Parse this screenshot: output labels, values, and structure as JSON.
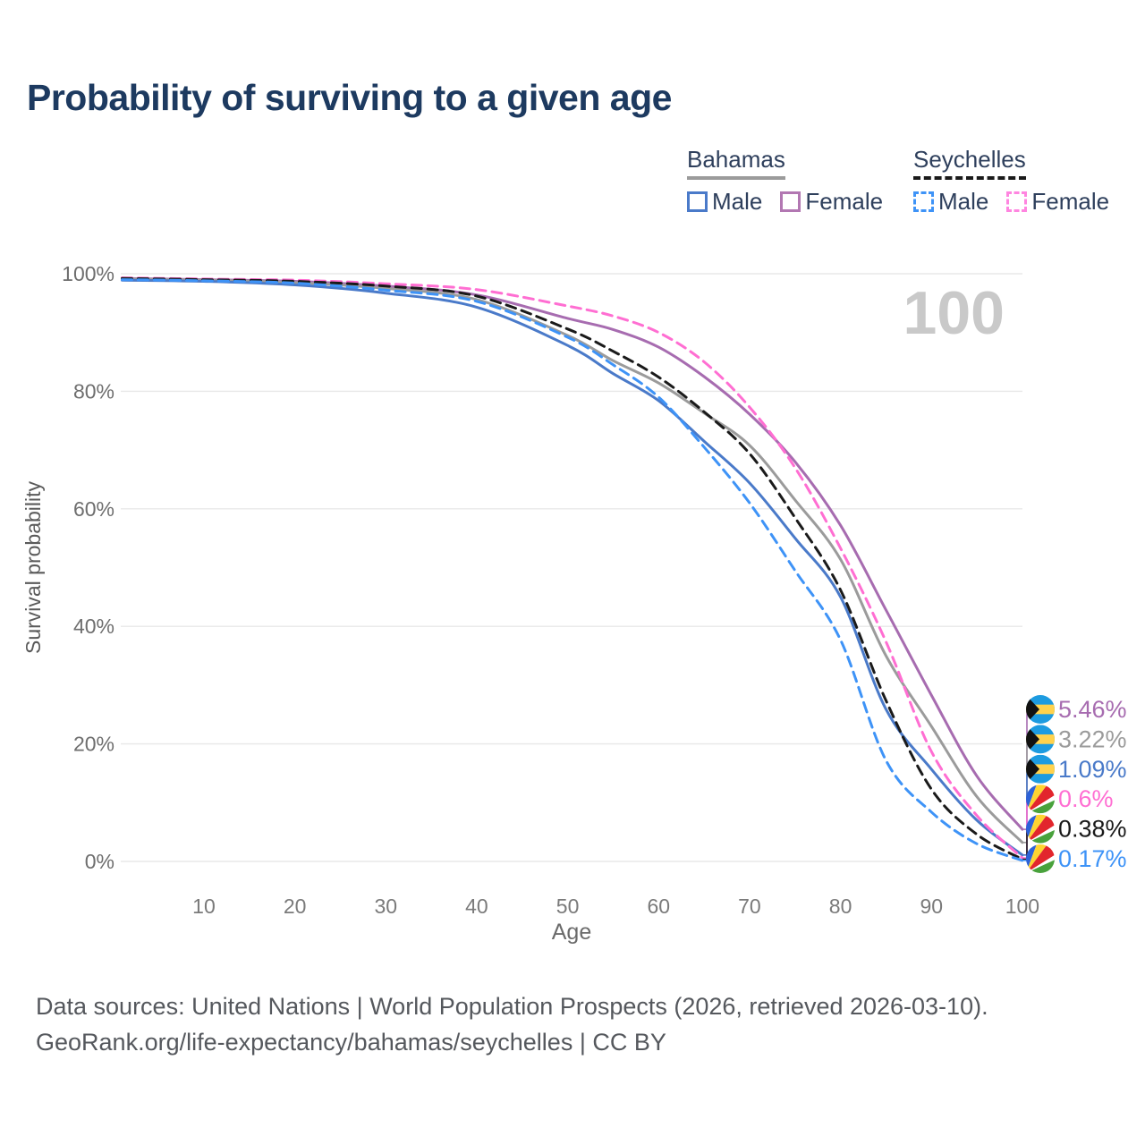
{
  "title": "Probability of surviving to a given age",
  "legend": {
    "groups": [
      {
        "name": "Bahamas",
        "line_style": "solid",
        "line_color": "#9b9b9b",
        "items": [
          {
            "label": "Male",
            "color": "#4a7ac9",
            "dashed": false
          },
          {
            "label": "Female",
            "color": "#b277b2",
            "dashed": false
          }
        ]
      },
      {
        "name": "Seychelles",
        "line_style": "dashed",
        "line_color": "#1a1a1a",
        "items": [
          {
            "label": "Male",
            "color": "#3e93f7",
            "dashed": true
          },
          {
            "label": "Female",
            "color": "#ff85e0",
            "dashed": true
          }
        ]
      }
    ]
  },
  "chart_data": {
    "type": "line",
    "title": "Probability of surviving to a given age",
    "xlabel": "Age",
    "ylabel": "Survival probability",
    "xlim": [
      1,
      100
    ],
    "ylim": [
      0,
      100
    ],
    "grid": "horizontal",
    "legend_position": "top-right",
    "watermark": "100",
    "x_ticks": [
      10,
      20,
      30,
      40,
      50,
      60,
      70,
      80,
      90,
      100
    ],
    "y_ticks": [
      0,
      20,
      40,
      60,
      80,
      100
    ],
    "y_tick_labels": [
      "0%",
      "20%",
      "40%",
      "60%",
      "80%",
      "100%"
    ],
    "ages": [
      1,
      10,
      20,
      30,
      40,
      50,
      55,
      60,
      65,
      70,
      75,
      80,
      85,
      90,
      95,
      100
    ],
    "series": [
      {
        "name": "Bahamas Female",
        "country": "Bahamas",
        "sex": "Female",
        "flag": "bahamas",
        "color": "#a76cb0",
        "dashed": false,
        "end_label": "5.46%",
        "label_color": "#a76cb0",
        "values": [
          99.2,
          99.0,
          98.7,
          97.9,
          96.4,
          92.4,
          90.5,
          87.5,
          82.5,
          76.1,
          68.0,
          57.2,
          42.8,
          28.3,
          14.5,
          5.46
        ]
      },
      {
        "name": "Bahamas Total",
        "country": "Bahamas",
        "sex": "Both",
        "flag": "bahamas",
        "color": "#9b9b9b",
        "dashed": false,
        "end_label": "3.22%",
        "label_color": "#9b9b9b",
        "values": [
          99.1,
          98.9,
          98.5,
          97.5,
          95.6,
          89.5,
          85.2,
          81.4,
          76.3,
          70.8,
          61.5,
          51.4,
          35.0,
          23.0,
          11.0,
          3.22
        ]
      },
      {
        "name": "Bahamas Male",
        "country": "Bahamas",
        "sex": "Male",
        "flag": "bahamas",
        "color": "#4a7ac9",
        "dashed": false,
        "end_label": "1.09%",
        "label_color": "#4a7ac9",
        "values": [
          98.9,
          98.7,
          98.1,
          96.7,
          94.3,
          87.8,
          83.0,
          78.4,
          71.5,
          64.4,
          55.0,
          45.0,
          25.9,
          15.7,
          7.0,
          1.09
        ]
      },
      {
        "name": "Seychelles Female",
        "country": "Seychelles",
        "sex": "Female",
        "flag": "seychelles",
        "color": "#ff6ed2",
        "dashed": true,
        "end_label": "0.6%",
        "label_color": "#ff6ed2",
        "values": [
          99.3,
          99.1,
          98.9,
          98.3,
          97.3,
          94.5,
          92.8,
          90.0,
          85.0,
          77.3,
          67.0,
          53.3,
          37.4,
          18.7,
          7.8,
          0.6
        ]
      },
      {
        "name": "Seychelles Total",
        "country": "Seychelles",
        "sex": "Both",
        "flag": "seychelles",
        "color": "#1a1a1a",
        "dashed": true,
        "end_label": "0.38%",
        "label_color": "#1a1a1a",
        "values": [
          99.2,
          99.0,
          98.7,
          97.9,
          96.2,
          90.6,
          86.8,
          82.4,
          76.5,
          69.4,
          58.5,
          46.2,
          27.4,
          12.3,
          4.6,
          0.38
        ]
      },
      {
        "name": "Seychelles Male",
        "country": "Seychelles",
        "sex": "Male",
        "flag": "seychelles",
        "color": "#3e93f7",
        "dashed": true,
        "end_label": "0.17%",
        "label_color": "#3e93f7",
        "values": [
          99.0,
          98.8,
          98.4,
          97.2,
          95.3,
          89.2,
          84.5,
          79.0,
          70.5,
          61.0,
          49.5,
          37.7,
          17.2,
          8.4,
          3.0,
          0.17
        ]
      }
    ],
    "flag_colors": {
      "bahamas": {
        "aqua": "#1d9be0",
        "gold": "#ffd24d",
        "black": "#111111"
      },
      "seychelles": {
        "blue": "#2d62d8",
        "yellow": "#fed432",
        "red": "#e2262d",
        "white": "#ffffff",
        "green": "#49a23c"
      }
    }
  },
  "footer": {
    "line1": "Data sources: United Nations | World Population Prospects (2026, retrieved 2026-03-10).",
    "line2": "GeoRank.org/life-expectancy/bahamas/seychelles | CC BY"
  }
}
